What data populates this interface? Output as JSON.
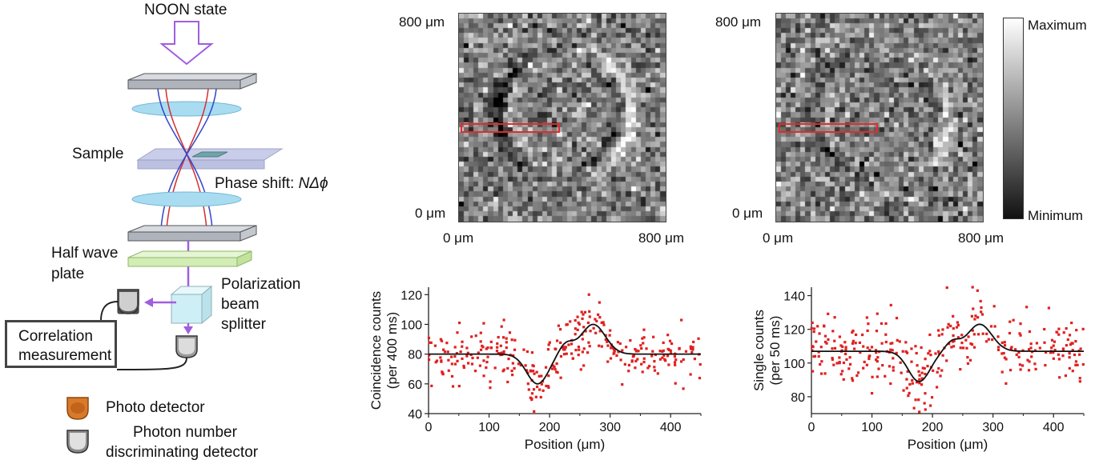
{
  "setup": {
    "noon_label": "NOON state",
    "sample_label": "Sample",
    "phase_shift_label": "Phase shift: ",
    "phase_shift_math": "NΔϕ",
    "half_wave_line1": "Half wave",
    "half_wave_line2": "plate",
    "pbs_line1": "Polarization",
    "pbs_line2": "beam",
    "pbs_line3": "splitter",
    "correlation_line1": "Correlation",
    "correlation_line2": "measurement",
    "legend_photo_detector": "Photo detector",
    "legend_pnd_line1": "Photon number",
    "legend_pnd_line2": "discriminating detector",
    "colors": {
      "arrow": "#a05ee0",
      "plate_gray": "#b7bcc4",
      "lens": "#a9dcf0",
      "sample": "#c8cbe8",
      "half_wave": "#d3edb5",
      "beam_red": "#d23030",
      "beam_blue": "#3146c9",
      "pbs": "#cfeff6",
      "detector_orange": "#d9792a"
    }
  },
  "images": {
    "left": {
      "y_top": "800 μm",
      "y_bottom": "0 μm",
      "x_left": "0 μm",
      "x_right": "800 μm"
    },
    "right": {
      "y_top": "800 μm",
      "y_bottom": "0 μm",
      "x_left": "0 μm",
      "x_right": "800 μm"
    },
    "colorbar": {
      "max_label": "Maximum",
      "min_label": "Minimum"
    }
  },
  "chart_data": [
    {
      "type": "scatter",
      "xlabel": "Position (μm)",
      "ylabel_line1": "Coincidence counts",
      "ylabel_line2": "(per 400 ms)",
      "xlim": [
        0,
        450
      ],
      "ylim": [
        40,
        125
      ],
      "xticks": [
        0,
        100,
        200,
        300,
        400
      ],
      "yticks": [
        40,
        60,
        80,
        100,
        120
      ],
      "baseline": 80,
      "features": {
        "dip_center": 180,
        "dip_value": 60,
        "peak_center": 272,
        "peak_value": 100
      },
      "noise_sd": 9,
      "colors": {
        "points": "#e02020",
        "fit": "#111111"
      }
    },
    {
      "type": "scatter",
      "xlabel": "Position (μm)",
      "ylabel_line1": "Single counts",
      "ylabel_line2": "(per 50 ms)",
      "xlim": [
        0,
        450
      ],
      "ylim": [
        70,
        145
      ],
      "xticks": [
        0,
        100,
        200,
        300,
        400
      ],
      "yticks": [
        80,
        100,
        120,
        140
      ],
      "baseline": 107,
      "features": {
        "dip_center": 178,
        "dip_value": 89,
        "peak_center": 278,
        "peak_value": 123
      },
      "noise_sd": 10,
      "colors": {
        "points": "#e02020",
        "fit": "#111111"
      }
    }
  ]
}
